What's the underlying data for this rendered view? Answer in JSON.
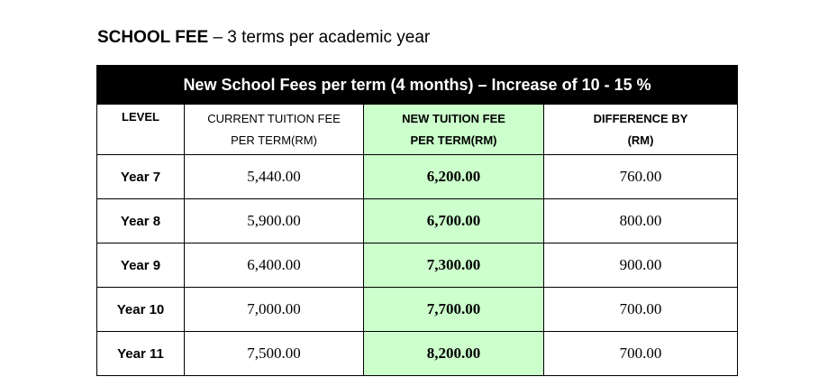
{
  "heading": {
    "bold_part": "SCHOOL FEE",
    "rest": " – 3 terms per academic year"
  },
  "table": {
    "title": "New School Fees per term (4 months) –  Increase of 10 - 15 %",
    "headers": {
      "level": "LEVEL",
      "current_line1": "CURRENT TUITION FEE",
      "current_line2": "PER TERM(RM)",
      "new_line1": "NEW TUITION FEE",
      "new_line2": "PER TERM(RM)",
      "diff_line1": "DIFFERENCE BY",
      "diff_line2": "(RM)"
    },
    "rows": [
      {
        "level": "Year 7",
        "current": "5,440.00",
        "new": "6,200.00",
        "difference": "760.00"
      },
      {
        "level": "Year 8",
        "current": "5,900.00",
        "new": "6,700.00",
        "difference": "800.00"
      },
      {
        "level": "Year 9",
        "current": "6,400.00",
        "new": "7,300.00",
        "difference": "900.00"
      },
      {
        "level": "Year 10",
        "current": "7,000.00",
        "new": "7,700.00",
        "difference": "700.00"
      },
      {
        "level": "Year 11",
        "current": "7,500.00",
        "new": "8,200.00",
        "difference": "700.00"
      }
    ]
  },
  "colors": {
    "title_bg": "#000000",
    "new_fee_column_bg": "#ccffcc"
  }
}
